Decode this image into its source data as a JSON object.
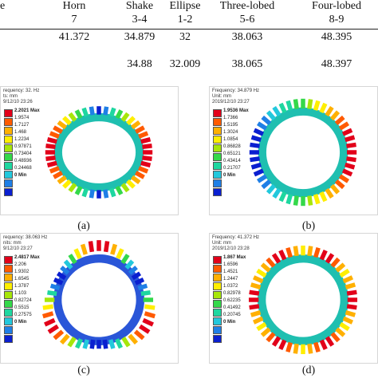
{
  "table": {
    "first_col_partial": "e",
    "headers": [
      {
        "name": "Horn",
        "order": "7"
      },
      {
        "name": "Shake",
        "order": "3-4"
      },
      {
        "name": "Ellipse",
        "order": "1-2"
      },
      {
        "name": "Three-lobed",
        "order": "5-6"
      },
      {
        "name": "Four-lobed",
        "order": "8-9"
      }
    ],
    "row1": [
      "41.372",
      "34.879",
      "32",
      "38.063",
      "48.395"
    ],
    "row2": [
      "",
      "34.88",
      "32.009",
      "38.065",
      "48.397"
    ]
  },
  "legend_colors": [
    "#e2001a",
    "#ff5a00",
    "#ffb000",
    "#ffee00",
    "#a6e60a",
    "#34d84a",
    "#1ed7a0",
    "#22c8dc",
    "#1f7fe6",
    "#0a1fd0"
  ],
  "panels": [
    {
      "id": "a",
      "meta": [
        "requency: 32. Hz",
        "ts: mm",
        "9/12/10 23:26"
      ],
      "legend": [
        "2.2021 Max",
        "1.9574",
        "1.7127",
        "1.468",
        "1.2234",
        "0.97871",
        "0.73404",
        "0.48936",
        "0.24468",
        "0 Min"
      ],
      "caption": "(a)",
      "shape": "ellipse",
      "hot": "sides"
    },
    {
      "id": "b",
      "meta": [
        "Frequency: 34.879 Hz",
        "Unit: mm",
        "2019/12/10 23:27"
      ],
      "legend": [
        "1.9536 Max",
        "1.7366",
        "1.5195",
        "1.3024",
        "1.0854",
        "0.86828",
        "0.65121",
        "0.43414",
        "0.21707",
        "0 Min"
      ],
      "caption": "(b)",
      "shape": "circle",
      "hot": "shake"
    },
    {
      "id": "c",
      "meta": [
        "requency: 38.063 Hz",
        "nits: mm",
        "9/12/10 23:27"
      ],
      "legend": [
        "2.4817 Max",
        "2.206",
        "1.9302",
        "1.6545",
        "1.3787",
        "1.103",
        "0.82724",
        "0.5515",
        "0.27575",
        "0 Min"
      ],
      "caption": "(c)",
      "shape": "triangle",
      "hot": "lobes3"
    },
    {
      "id": "d",
      "meta": [
        "Frequency: 41.372 Hz",
        "Unit: mm",
        "2019/12/10 23:28"
      ],
      "legend": [
        "1.867 Max",
        "1.6596",
        "1.4521",
        "1.2447",
        "1.0372",
        "0.82978",
        "0.62235",
        "0.41492",
        "0.20745",
        "0 Min"
      ],
      "caption": "(d)",
      "shape": "circle",
      "hot": "uniform"
    }
  ]
}
